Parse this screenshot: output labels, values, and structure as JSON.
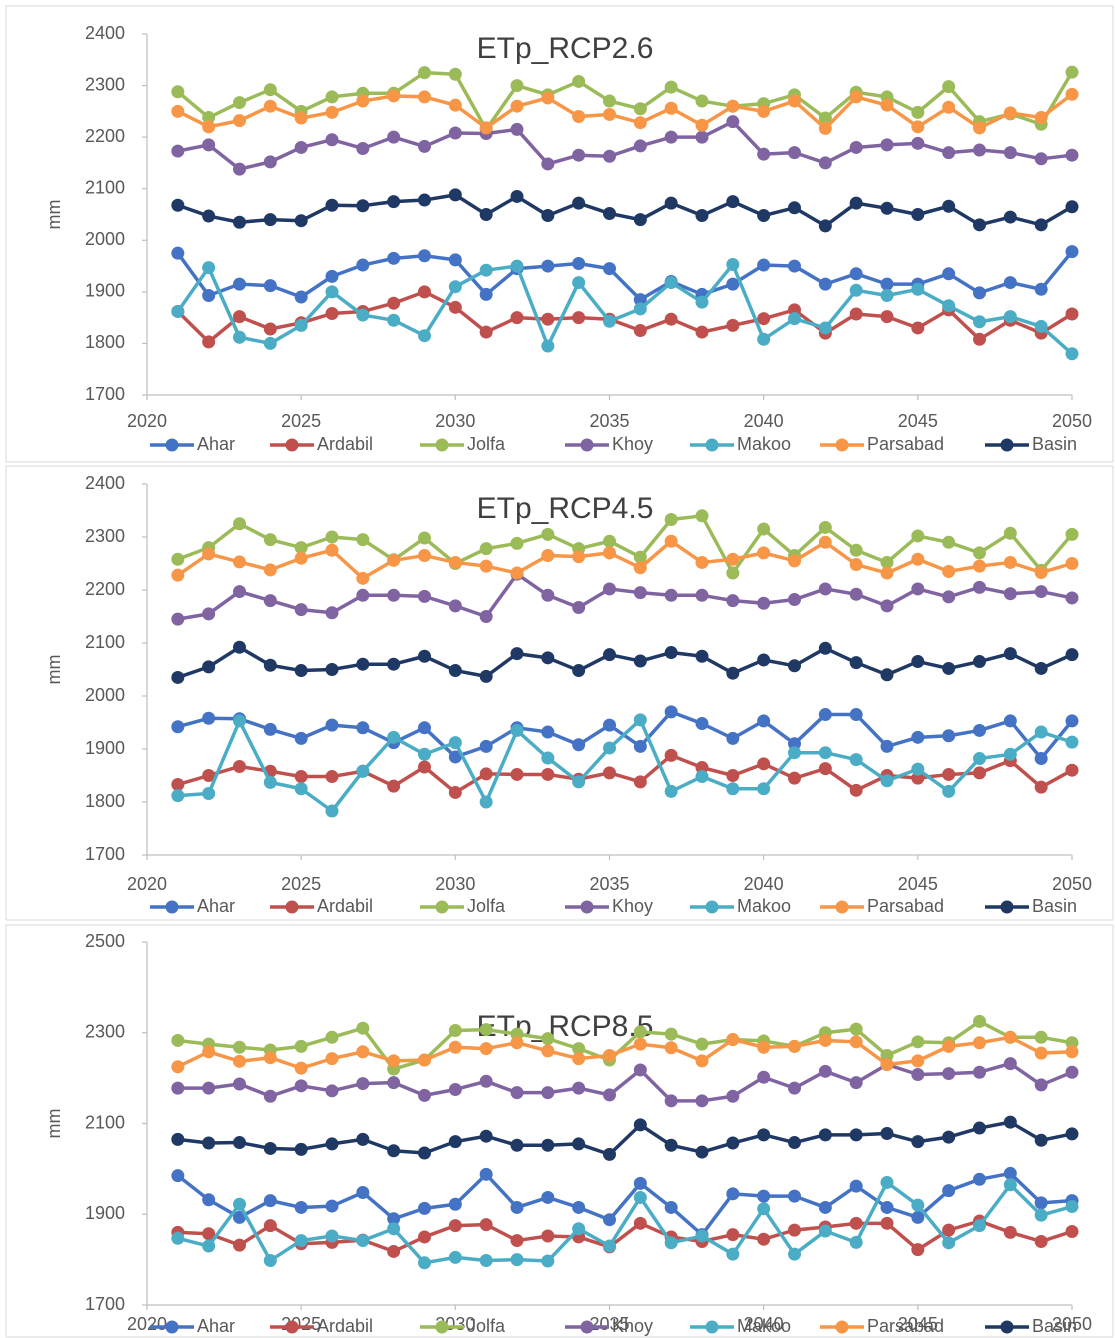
{
  "chart_data": [
    {
      "type": "line",
      "title": "ETp_RCP2.6",
      "ylabel": "mm",
      "x": [
        2021,
        2022,
        2023,
        2024,
        2025,
        2026,
        2027,
        2028,
        2029,
        2030,
        2031,
        2032,
        2033,
        2034,
        2035,
        2036,
        2037,
        2038,
        2039,
        2040,
        2041,
        2042,
        2043,
        2044,
        2045,
        2046,
        2047,
        2048,
        2049,
        2050
      ],
      "xlim": [
        2020,
        2050
      ],
      "xticks": [
        2020,
        2025,
        2030,
        2035,
        2040,
        2045,
        2050
      ],
      "ylim": [
        1700,
        2400
      ],
      "yticks": [
        1700,
        1800,
        1900,
        2000,
        2100,
        2200,
        2300,
        2400
      ],
      "legend": "bottom",
      "series": [
        {
          "name": "Ahar",
          "color": "#4472c4",
          "values": [
            1975,
            1893,
            1915,
            1912,
            1890,
            1930,
            1952,
            1965,
            1970,
            1962,
            1895,
            1945,
            1950,
            1955,
            1945,
            1885,
            1920,
            1895,
            1915,
            1952,
            1950,
            1915,
            1935,
            1915,
            1915,
            1935,
            1898,
            1918,
            1905,
            1978
          ]
        },
        {
          "name": "Ardabil",
          "color": "#c0504d",
          "values": [
            1862,
            1803,
            1852,
            1828,
            1840,
            1858,
            1862,
            1878,
            1900,
            1870,
            1822,
            1850,
            1847,
            1850,
            1847,
            1825,
            1847,
            1822,
            1835,
            1848,
            1865,
            1820,
            1857,
            1852,
            1830,
            1865,
            1808,
            1845,
            1820,
            1857
          ]
        },
        {
          "name": "Jolfa",
          "color": "#9bbb59",
          "values": [
            2288,
            2238,
            2267,
            2292,
            2250,
            2278,
            2285,
            2285,
            2325,
            2322,
            2215,
            2300,
            2282,
            2308,
            2270,
            2255,
            2297,
            2270,
            2260,
            2265,
            2282,
            2237,
            2287,
            2278,
            2248,
            2298,
            2230,
            2245,
            2225,
            2326
          ]
        },
        {
          "name": "Khoy",
          "color": "#8064a2",
          "values": [
            2173,
            2185,
            2138,
            2152,
            2180,
            2195,
            2178,
            2200,
            2182,
            2208,
            2207,
            2215,
            2148,
            2165,
            2163,
            2183,
            2200,
            2200,
            2230,
            2167,
            2170,
            2150,
            2180,
            2185,
            2188,
            2170,
            2175,
            2170,
            2158,
            2165
          ]
        },
        {
          "name": "Makoo",
          "color": "#4bacc6",
          "values": [
            1862,
            1947,
            1812,
            1800,
            1835,
            1900,
            1855,
            1845,
            1815,
            1910,
            1942,
            1950,
            1795,
            1918,
            1843,
            1867,
            1918,
            1880,
            1953,
            1808,
            1848,
            1830,
            1903,
            1893,
            1905,
            1873,
            1842,
            1852,
            1833,
            1780
          ]
        },
        {
          "name": "Parsabad",
          "color": "#f79646",
          "values": [
            2250,
            2220,
            2232,
            2260,
            2237,
            2248,
            2270,
            2280,
            2278,
            2262,
            2218,
            2260,
            2276,
            2240,
            2244,
            2228,
            2256,
            2223,
            2260,
            2250,
            2270,
            2217,
            2278,
            2262,
            2220,
            2258,
            2218,
            2247,
            2238,
            2283
          ]
        },
        {
          "name": "Basin",
          "color": "#1f3864",
          "values": [
            2068,
            2047,
            2035,
            2040,
            2038,
            2068,
            2067,
            2075,
            2078,
            2088,
            2050,
            2085,
            2048,
            2072,
            2052,
            2040,
            2072,
            2048,
            2075,
            2048,
            2063,
            2028,
            2072,
            2062,
            2050,
            2066,
            2030,
            2045,
            2030,
            2065
          ]
        }
      ]
    },
    {
      "type": "line",
      "title": "ETp_RCP4.5",
      "ylabel": "mm",
      "x": [
        2021,
        2022,
        2023,
        2024,
        2025,
        2026,
        2027,
        2028,
        2029,
        2030,
        2031,
        2032,
        2033,
        2034,
        2035,
        2036,
        2037,
        2038,
        2039,
        2040,
        2041,
        2042,
        2043,
        2044,
        2045,
        2046,
        2047,
        2048,
        2049,
        2050
      ],
      "xlim": [
        2020,
        2050
      ],
      "xticks": [
        2020,
        2025,
        2030,
        2035,
        2040,
        2045,
        2050
      ],
      "ylim": [
        1700,
        2400
      ],
      "yticks": [
        1700,
        1800,
        1900,
        2000,
        2100,
        2200,
        2300,
        2400
      ],
      "legend": "bottom",
      "series": [
        {
          "name": "Ahar",
          "color": "#4472c4",
          "values": [
            1942,
            1958,
            1957,
            1937,
            1920,
            1945,
            1940,
            1912,
            1940,
            1885,
            1905,
            1940,
            1932,
            1908,
            1945,
            1905,
            1970,
            1948,
            1920,
            1953,
            1910,
            1965,
            1965,
            1905,
            1922,
            1925,
            1935,
            1953,
            1882,
            1953
          ]
        },
        {
          "name": "Ardabil",
          "color": "#c0504d",
          "values": [
            1833,
            1850,
            1867,
            1858,
            1848,
            1848,
            1858,
            1830,
            1866,
            1818,
            1853,
            1852,
            1852,
            1843,
            1855,
            1838,
            1888,
            1865,
            1850,
            1872,
            1845,
            1863,
            1822,
            1850,
            1845,
            1852,
            1855,
            1878,
            1828,
            1860
          ]
        },
        {
          "name": "Jolfa",
          "color": "#9bbb59",
          "values": [
            2258,
            2280,
            2325,
            2295,
            2280,
            2300,
            2295,
            2257,
            2298,
            2250,
            2278,
            2288,
            2305,
            2278,
            2292,
            2262,
            2333,
            2340,
            2232,
            2315,
            2265,
            2318,
            2275,
            2252,
            2302,
            2290,
            2270,
            2307,
            2237,
            2305
          ]
        },
        {
          "name": "Khoy",
          "color": "#8064a2",
          "values": [
            2145,
            2155,
            2197,
            2180,
            2163,
            2157,
            2190,
            2190,
            2188,
            2170,
            2150,
            2230,
            2190,
            2167,
            2202,
            2195,
            2190,
            2190,
            2180,
            2175,
            2182,
            2202,
            2192,
            2170,
            2202,
            2187,
            2205,
            2193,
            2197,
            2185
          ]
        },
        {
          "name": "Makoo",
          "color": "#4bacc6",
          "values": [
            1812,
            1816,
            1953,
            1837,
            1825,
            1783,
            1858,
            1922,
            1890,
            1912,
            1800,
            1935,
            1883,
            1838,
            1902,
            1955,
            1820,
            1848,
            1825,
            1825,
            1893,
            1893,
            1880,
            1840,
            1862,
            1820,
            1882,
            1890,
            1932,
            1913
          ]
        },
        {
          "name": "Parsabad",
          "color": "#f79646",
          "values": [
            2228,
            2268,
            2253,
            2238,
            2260,
            2275,
            2222,
            2256,
            2265,
            2252,
            2245,
            2232,
            2265,
            2263,
            2270,
            2242,
            2292,
            2252,
            2258,
            2270,
            2255,
            2290,
            2248,
            2232,
            2258,
            2235,
            2245,
            2252,
            2233,
            2250
          ]
        },
        {
          "name": "Basin",
          "color": "#1f3864",
          "values": [
            2035,
            2055,
            2092,
            2058,
            2048,
            2050,
            2060,
            2060,
            2075,
            2048,
            2037,
            2080,
            2072,
            2048,
            2078,
            2066,
            2082,
            2075,
            2043,
            2068,
            2057,
            2090,
            2063,
            2040,
            2065,
            2052,
            2065,
            2080,
            2052,
            2078
          ]
        }
      ]
    },
    {
      "type": "line",
      "title": "ETp_RCP8.5",
      "ylabel": "mm",
      "x": [
        2021,
        2022,
        2023,
        2024,
        2025,
        2026,
        2027,
        2028,
        2029,
        2030,
        2031,
        2032,
        2033,
        2034,
        2035,
        2036,
        2037,
        2038,
        2039,
        2040,
        2041,
        2042,
        2043,
        2044,
        2045,
        2046,
        2047,
        2048,
        2049,
        2050
      ],
      "xlim": [
        2020,
        2050
      ],
      "xticks": [
        2020,
        2025,
        2030,
        2035,
        2040,
        2045,
        2050
      ],
      "ylim": [
        1700,
        2500
      ],
      "yticks": [
        1700,
        1900,
        2100,
        2300,
        2500
      ],
      "legend": "bottom",
      "series": [
        {
          "name": "Ahar",
          "color": "#4472c4",
          "values": [
            1985,
            1932,
            1893,
            1930,
            1915,
            1918,
            1948,
            1890,
            1913,
            1922,
            1988,
            1915,
            1937,
            1915,
            1888,
            1968,
            1915,
            1855,
            1945,
            1940,
            1940,
            1915,
            1962,
            1915,
            1893,
            1952,
            1977,
            1990,
            1925,
            1930
          ]
        },
        {
          "name": "Ardabil",
          "color": "#c0504d",
          "values": [
            1860,
            1857,
            1832,
            1875,
            1835,
            1838,
            1843,
            1818,
            1850,
            1875,
            1877,
            1842,
            1852,
            1850,
            1828,
            1880,
            1850,
            1840,
            1855,
            1845,
            1865,
            1872,
            1880,
            1880,
            1822,
            1865,
            1885,
            1860,
            1840,
            1862
          ]
        },
        {
          "name": "Jolfa",
          "color": "#9bbb59",
          "values": [
            2283,
            2275,
            2268,
            2262,
            2270,
            2290,
            2310,
            2220,
            2240,
            2305,
            2307,
            2297,
            2287,
            2265,
            2240,
            2302,
            2297,
            2275,
            2285,
            2282,
            2270,
            2300,
            2308,
            2250,
            2280,
            2278,
            2325,
            2290,
            2290,
            2278
          ]
        },
        {
          "name": "Khoy",
          "color": "#8064a2",
          "values": [
            2178,
            2178,
            2187,
            2160,
            2183,
            2172,
            2188,
            2190,
            2162,
            2175,
            2193,
            2168,
            2168,
            2178,
            2163,
            2218,
            2150,
            2150,
            2160,
            2202,
            2178,
            2215,
            2190,
            2230,
            2208,
            2210,
            2213,
            2232,
            2185,
            2213
          ]
        },
        {
          "name": "Makoo",
          "color": "#4bacc6",
          "values": [
            1847,
            1830,
            1922,
            1798,
            1842,
            1852,
            1842,
            1868,
            1793,
            1805,
            1798,
            1800,
            1797,
            1868,
            1830,
            1937,
            1837,
            1852,
            1812,
            1912,
            1812,
            1863,
            1838,
            1970,
            1920,
            1837,
            1875,
            1965,
            1898,
            1917
          ]
        },
        {
          "name": "Parsabad",
          "color": "#f79646",
          "values": [
            2225,
            2258,
            2237,
            2245,
            2222,
            2243,
            2258,
            2238,
            2240,
            2268,
            2265,
            2278,
            2260,
            2243,
            2250,
            2275,
            2267,
            2238,
            2285,
            2268,
            2270,
            2283,
            2280,
            2230,
            2238,
            2270,
            2278,
            2290,
            2255,
            2258
          ]
        },
        {
          "name": "Basin",
          "color": "#1f3864",
          "values": [
            2065,
            2057,
            2058,
            2045,
            2043,
            2055,
            2065,
            2040,
            2035,
            2060,
            2072,
            2052,
            2052,
            2055,
            2032,
            2097,
            2052,
            2037,
            2057,
            2075,
            2058,
            2075,
            2075,
            2078,
            2060,
            2070,
            2090,
            2103,
            2063,
            2077
          ]
        }
      ]
    }
  ]
}
